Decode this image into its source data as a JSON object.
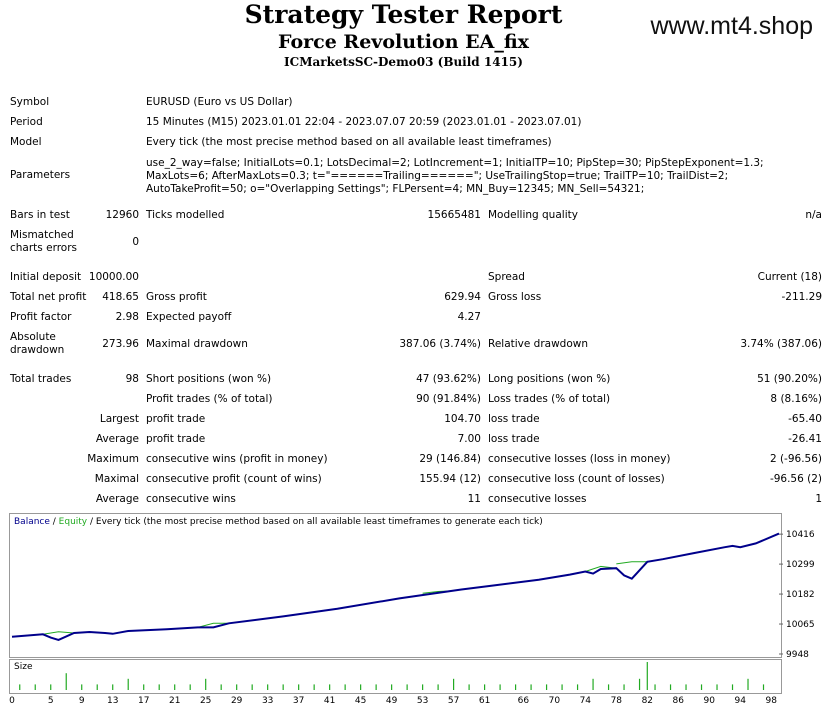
{
  "header": {
    "title": "Strategy Tester Report",
    "ea_name": "Force Revolution EA_fix",
    "server": "ICMarketsSC-Demo03 (Build 1415)",
    "brand": "www.mt4.shop"
  },
  "info": {
    "symbol_label": "Symbol",
    "symbol": "EURUSD (Euro vs US Dollar)",
    "period_label": "Period",
    "period": "15 Minutes (M15) 2023.01.01 22:04 - 2023.07.07 20:59 (2023.01.01 - 2023.07.01)",
    "model_label": "Model",
    "model": "Every tick (the most precise method based on all available least timeframes)",
    "params_label": "Parameters",
    "params": "use_2_way=false; InitialLots=0.1; LotsDecimal=2; LotIncrement=1; InitialTP=10; PipStep=30; PipStepExponent=1.3; MaxLots=6; AfterMaxLots=0.3; t=\"======Trailing======\"; UseTrailingStop=true; TrailTP=10; TrailDist=2; AutoTakeProfit=50; o=\"Overlapping Settings\"; FLPersent=4; MN_Buy=12345; MN_Sell=54321;"
  },
  "stats": {
    "bars_label": "Bars in test",
    "bars": "12960",
    "ticks_label": "Ticks modelled",
    "ticks": "15665481",
    "quality_label": "Modelling quality",
    "quality": "n/a",
    "mismatch_label": "Mismatched charts errors",
    "mismatch": "0",
    "deposit_label": "Initial deposit",
    "deposit": "10000.00",
    "spread_label": "Spread",
    "spread": "Current (18)",
    "netprofit_label": "Total net profit",
    "netprofit": "418.65",
    "grossprofit_label": "Gross profit",
    "grossprofit": "629.94",
    "grossloss_label": "Gross loss",
    "grossloss": "-211.29",
    "pf_label": "Profit factor",
    "pf": "2.98",
    "payoff_label": "Expected payoff",
    "payoff": "4.27",
    "absdd_label": "Absolute drawdown",
    "absdd": "273.96",
    "maxdd_label": "Maximal drawdown",
    "maxdd": "387.06 (3.74%)",
    "reldd_label": "Relative drawdown",
    "reldd": "3.74% (387.06)",
    "trades_label": "Total trades",
    "trades": "98",
    "short_label": "Short positions (won %)",
    "short": "47 (93.62%)",
    "long_label": "Long positions (won %)",
    "long": "51 (90.20%)",
    "ptrades_label": "Profit trades (% of total)",
    "ptrades": "90 (91.84%)",
    "ltrades_label": "Loss trades (% of total)",
    "ltrades": "8 (8.16%)",
    "largest_label": "Largest",
    "profit_trade_label": "profit trade",
    "largest_profit": "104.70",
    "loss_trade_label": "loss trade",
    "largest_loss": "-65.40",
    "average_label": "Average",
    "average_profit": "7.00",
    "average_loss": "-26.41",
    "maximum_label": "Maximum",
    "cw_money_label": "consecutive wins (profit in money)",
    "cw_money": "29 (146.84)",
    "cl_money_label": "consecutive losses (loss in money)",
    "cl_money": "2 (-96.56)",
    "maximal_label": "Maximal",
    "cp_count_label": "consecutive profit (count of wins)",
    "cp_count": "155.94 (12)",
    "cl_count_label": "consecutive loss (count of losses)",
    "cl_count": "-96.56 (2)",
    "average2_label": "Average",
    "cw_label": "consecutive wins",
    "cw": "11",
    "cl_label": "consecutive losses",
    "cl": "1"
  },
  "chart_data": {
    "type": "line",
    "legend": {
      "balance": "Balance",
      "sep1": " / ",
      "equity": "Equity",
      "rest": " / Every tick (the most precise method based on all available least timeframes to generate each tick)"
    },
    "colors": {
      "balance": "#00008b",
      "equity": "#22aa22",
      "size": "#22aa22"
    },
    "yticks": [
      10416,
      10299,
      10182,
      10065,
      9948
    ],
    "ylim": [
      9948,
      10440
    ],
    "xlim": [
      0,
      99
    ],
    "xticks": [
      0,
      5,
      9,
      13,
      17,
      21,
      25,
      29,
      33,
      37,
      41,
      45,
      49,
      53,
      57,
      61,
      66,
      70,
      74,
      78,
      82,
      86,
      90,
      94,
      98
    ],
    "size_label": "Size",
    "balance": {
      "x": [
        0,
        4,
        5,
        6,
        8,
        10,
        12,
        13,
        15,
        20,
        24,
        26,
        28,
        35,
        42,
        50,
        58,
        62,
        68,
        72,
        74,
        75,
        76,
        78,
        79,
        80,
        81,
        82,
        84,
        88,
        92,
        93,
        94,
        96,
        99
      ],
      "y": [
        10015,
        10025,
        10012,
        10003,
        10030,
        10034,
        10030,
        10027,
        10038,
        10045,
        10052,
        10052,
        10068,
        10095,
        10125,
        10165,
        10200,
        10215,
        10238,
        10258,
        10270,
        10262,
        10280,
        10283,
        10255,
        10242,
        10275,
        10308,
        10318,
        10342,
        10365,
        10370,
        10365,
        10380,
        10418
      ]
    },
    "equity_bumps": [
      {
        "x": [
          4,
          6,
          8
        ],
        "y": [
          10025,
          10035,
          10030
        ]
      },
      {
        "x": [
          24,
          26,
          28
        ],
        "y": [
          10052,
          10068,
          10068
        ]
      },
      {
        "x": [
          53,
          55,
          57
        ],
        "y": [
          10185,
          10192,
          10195
        ]
      },
      {
        "x": [
          74,
          76,
          78
        ],
        "y": [
          10270,
          10290,
          10283
        ]
      },
      {
        "x": [
          78,
          80,
          82
        ],
        "y": [
          10300,
          10308,
          10308
        ]
      }
    ],
    "size_series": {
      "x": [
        1,
        3,
        5,
        7,
        9,
        11,
        13,
        15,
        17,
        19,
        21,
        23,
        25,
        27,
        29,
        31,
        33,
        35,
        37,
        39,
        41,
        43,
        45,
        47,
        49,
        51,
        53,
        55,
        57,
        59,
        61,
        63,
        65,
        67,
        69,
        71,
        73,
        75,
        77,
        79,
        81,
        82,
        83,
        85,
        87,
        89,
        91,
        93,
        95,
        97
      ],
      "y": [
        1,
        1,
        1,
        3,
        1,
        1,
        1,
        2,
        1,
        1,
        1,
        1,
        2,
        1,
        1,
        1,
        1,
        1,
        1,
        1,
        1,
        1,
        1,
        1,
        1,
        1,
        1,
        1,
        2,
        1,
        1,
        1,
        1,
        1,
        1,
        1,
        1,
        2,
        1,
        1,
        2,
        5,
        1,
        1,
        1,
        1,
        1,
        1,
        2,
        1
      ]
    }
  }
}
